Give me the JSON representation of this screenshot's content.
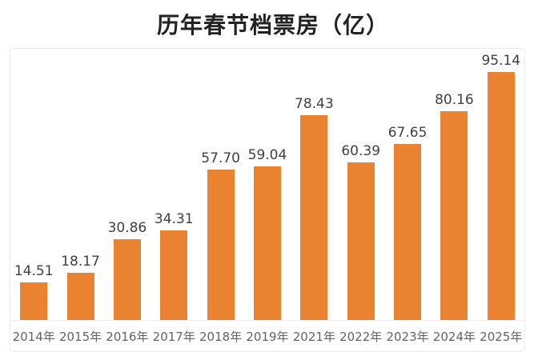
{
  "title": "历年春节档票房（亿）",
  "chart_data": {
    "type": "bar",
    "title": "历年春节档票房（亿）",
    "categories": [
      "2014年",
      "2015年",
      "2016年",
      "2017年",
      "2018年",
      "2019年",
      "2021年",
      "2022年",
      "2023年",
      "2024年",
      "2025年"
    ],
    "values": [
      14.51,
      18.17,
      30.86,
      34.31,
      57.7,
      59.04,
      78.43,
      60.39,
      67.65,
      80.16,
      95.14
    ],
    "value_labels": [
      "14.51",
      "18.17",
      "30.86",
      "34.31",
      "57.70",
      "59.04",
      "78.43",
      "60.39",
      "67.65",
      "80.16",
      "95.14"
    ],
    "xlabel": "",
    "ylabel": "",
    "ylim": [
      0,
      100
    ],
    "grid": false,
    "legend": false,
    "legend_position": "none",
    "bar_color": "#EA8331",
    "value_label_color": "#404040",
    "axis_label_color": "#636363",
    "frame_border_color": "#ebebeb",
    "background_color": "#ffffff"
  }
}
